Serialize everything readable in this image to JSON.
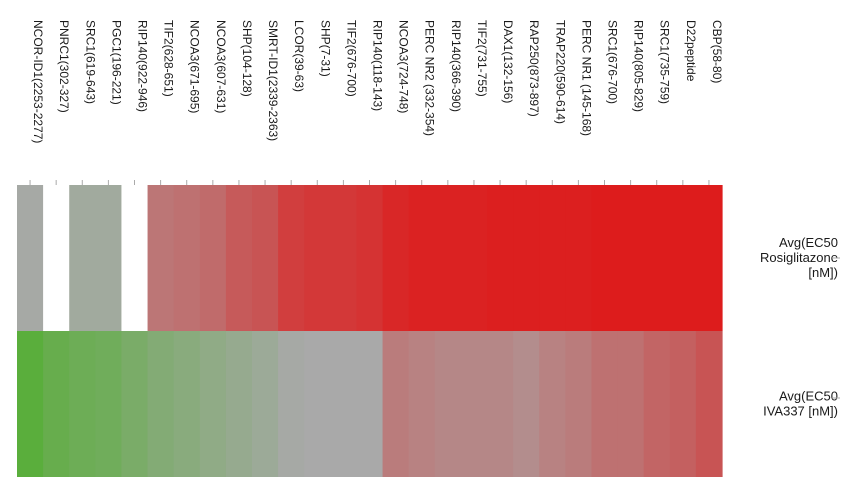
{
  "chart_data": {
    "type": "heatmap",
    "title": "",
    "columns": [
      "NCOR-ID1(2253-2277)",
      "PNRC1(302-327)",
      "SRC1(619-643)",
      "PGC1(196-221)",
      "RIP140(922-946)",
      "TIF2(628-651)",
      "NCOA3(671-695)",
      "NCOA3(607-631)",
      "SHP(104-128)",
      "SMRT-ID1(2339-2363)",
      "LCOR(39-63)",
      "SHP(7-31)",
      "TIF2(676-700)",
      "RIP140(118-143)",
      "NCOA3(724-748)",
      "PERC NR2 (332-354)",
      "RIP140(366-390)",
      "TIF2(731-755)",
      "DAX1(132-156)",
      "RAP250(873-897)",
      "TRAP220(590-614)",
      "PERC NR1 (145-168)",
      "SRC1(676-700)",
      "RIP140(805-829)",
      "SRC1(735-759)",
      "D22peptide",
      "CBP(58-80)"
    ],
    "rows": [
      "Avg(EC50 Rosiglitazone [nM])",
      "Avg(EC50 IVA337 [nM])"
    ],
    "color_scale": {
      "low": "#dd1c1c",
      "mid": "#a9a9a9",
      "high": "#5aae3c",
      "missing": "#ffffff",
      "note_direction": "red = low EC50, green = high EC50"
    },
    "values_scaled": [
      [
        0.52,
        null,
        0.55,
        0.55,
        null,
        0.32,
        0.3,
        0.28,
        0.22,
        0.2,
        0.12,
        0.1,
        0.1,
        0.08,
        0.04,
        0.02,
        0.02,
        0.02,
        0.01,
        0.01,
        0.01,
        0.01,
        0.0,
        0.0,
        0.0,
        0.0,
        0.0
      ],
      [
        1.0,
        0.92,
        0.88,
        0.86,
        0.8,
        0.74,
        0.7,
        0.66,
        0.62,
        0.58,
        0.52,
        0.5,
        0.5,
        0.5,
        0.34,
        0.36,
        0.38,
        0.38,
        0.38,
        0.4,
        0.36,
        0.34,
        0.3,
        0.3,
        0.26,
        0.24,
        0.2
      ]
    ]
  }
}
